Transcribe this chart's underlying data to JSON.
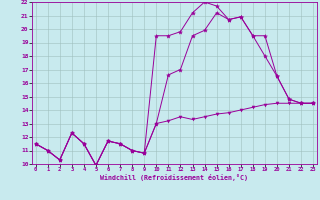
{
  "xlabel": "Windchill (Refroidissement éolien,°C)",
  "x": [
    0,
    1,
    2,
    3,
    4,
    5,
    6,
    7,
    8,
    9,
    10,
    11,
    12,
    13,
    14,
    15,
    16,
    17,
    18,
    19,
    20,
    21,
    22,
    23
  ],
  "line1": [
    11.5,
    11.0,
    10.3,
    12.3,
    11.5,
    9.9,
    11.7,
    11.5,
    11.0,
    10.8,
    13.0,
    13.2,
    13.5,
    13.3,
    13.5,
    13.7,
    13.8,
    14.0,
    14.2,
    14.4,
    14.5,
    14.5,
    14.5,
    14.5
  ],
  "line2": [
    11.5,
    11.0,
    10.3,
    12.3,
    11.5,
    9.9,
    11.7,
    11.5,
    11.0,
    10.8,
    13.0,
    16.6,
    17.0,
    19.5,
    19.9,
    21.2,
    20.7,
    20.9,
    19.5,
    18.0,
    16.5,
    14.8,
    14.5,
    14.5
  ],
  "line3": [
    11.5,
    11.0,
    10.3,
    12.3,
    11.5,
    9.9,
    11.7,
    11.5,
    11.0,
    10.8,
    19.5,
    19.5,
    19.8,
    21.2,
    22.0,
    21.7,
    20.7,
    20.9,
    19.5,
    19.5,
    16.5,
    14.8,
    14.5,
    14.5
  ],
  "bg_color": "#c8eaee",
  "line_color": "#990099",
  "grid_color": "#9fbfbf",
  "ylim": [
    10,
    22
  ],
  "xlim": [
    -0.3,
    23.3
  ],
  "yticks": [
    10,
    11,
    12,
    13,
    14,
    15,
    16,
    17,
    18,
    19,
    20,
    21,
    22
  ],
  "xticks": [
    0,
    1,
    2,
    3,
    4,
    5,
    6,
    7,
    8,
    9,
    10,
    11,
    12,
    13,
    14,
    15,
    16,
    17,
    18,
    19,
    20,
    21,
    22,
    23
  ]
}
